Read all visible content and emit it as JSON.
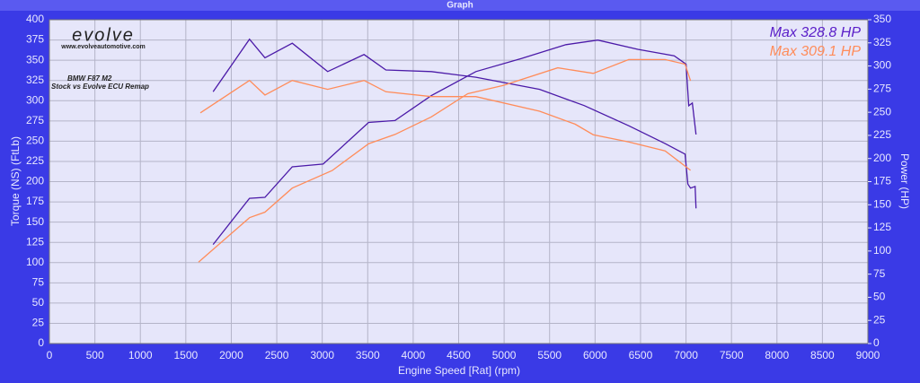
{
  "window_title": "Graph",
  "chart_data": {
    "type": "line",
    "logo": "evolve",
    "website": "www.evolveautomotive.com",
    "title": "BMW F87 M2",
    "subtitle": "Stock vs Evolve ECU Remap",
    "x_label": "Engine Speed [Rat] (rpm)",
    "y_label": "Torque (NS) (FtLb)",
    "y2_label": "Power (HP)",
    "annotations": [
      {
        "text": "Max 328.8 HP",
        "color": "#5a1ec8"
      },
      {
        "text": "Max 309.1 HP",
        "color": "#ff8c5a"
      }
    ],
    "xlim": [
      0,
      9000
    ],
    "xticks": [
      0,
      500,
      1000,
      1500,
      2000,
      2500,
      3000,
      3500,
      4000,
      4500,
      5000,
      5500,
      6000,
      6500,
      7000,
      7500,
      8000,
      8500,
      9000
    ],
    "ylim": [
      0,
      400
    ],
    "yticks": [
      0,
      25,
      50,
      75,
      100,
      125,
      150,
      175,
      200,
      225,
      250,
      275,
      300,
      325,
      350,
      375,
      400
    ],
    "y2lim": [
      0,
      350
    ],
    "y2ticks": [
      0,
      25,
      50,
      75,
      100,
      125,
      150,
      175,
      200,
      225,
      250,
      275,
      300,
      325,
      350
    ],
    "grid": true,
    "series": [
      {
        "color": "#4b1aa8",
        "x": [
          1800,
          2200,
          2370,
          2670,
          3060,
          3460,
          3700,
          4200,
          4690,
          5390,
          5880,
          6370,
          6770,
          6990,
          7020,
          7050,
          7100,
          7110
        ],
        "values": [
          311,
          376,
          353,
          371,
          336,
          357,
          338,
          336,
          329,
          314,
          294,
          269,
          247,
          234,
          197,
          192,
          194,
          167
        ]
      },
      {
        "color": "#4b1aa8",
        "axis": "y2",
        "x": [
          1800,
          2200,
          2370,
          2670,
          3010,
          3510,
          3800,
          4200,
          4690,
          5190,
          5680,
          6030,
          6470,
          6870,
          7000,
          7030,
          7070,
          7110
        ],
        "values": [
          107,
          157,
          158,
          191,
          194,
          239,
          241,
          268,
          294,
          308,
          323,
          328,
          318,
          311,
          302,
          257,
          260,
          226
        ]
      },
      {
        "color": "#ff8c5a",
        "x": [
          1660,
          2200,
          2370,
          2670,
          3060,
          3460,
          3700,
          4200,
          4690,
          5390,
          5780,
          5980,
          6370,
          6770,
          7050
        ],
        "values": [
          285,
          325,
          307,
          325,
          314,
          325,
          311,
          305,
          305,
          287,
          271,
          258,
          249,
          238,
          214
        ]
      },
      {
        "color": "#ff8c5a",
        "axis": "y2",
        "x": [
          1640,
          2200,
          2370,
          2670,
          3110,
          3510,
          3800,
          4200,
          4600,
          4990,
          5590,
          5980,
          6370,
          6770,
          6990,
          7050
        ],
        "values": [
          88,
          136,
          142,
          168,
          187,
          216,
          226,
          245,
          270,
          279,
          298,
          292,
          307,
          307,
          302,
          284
        ]
      }
    ]
  }
}
